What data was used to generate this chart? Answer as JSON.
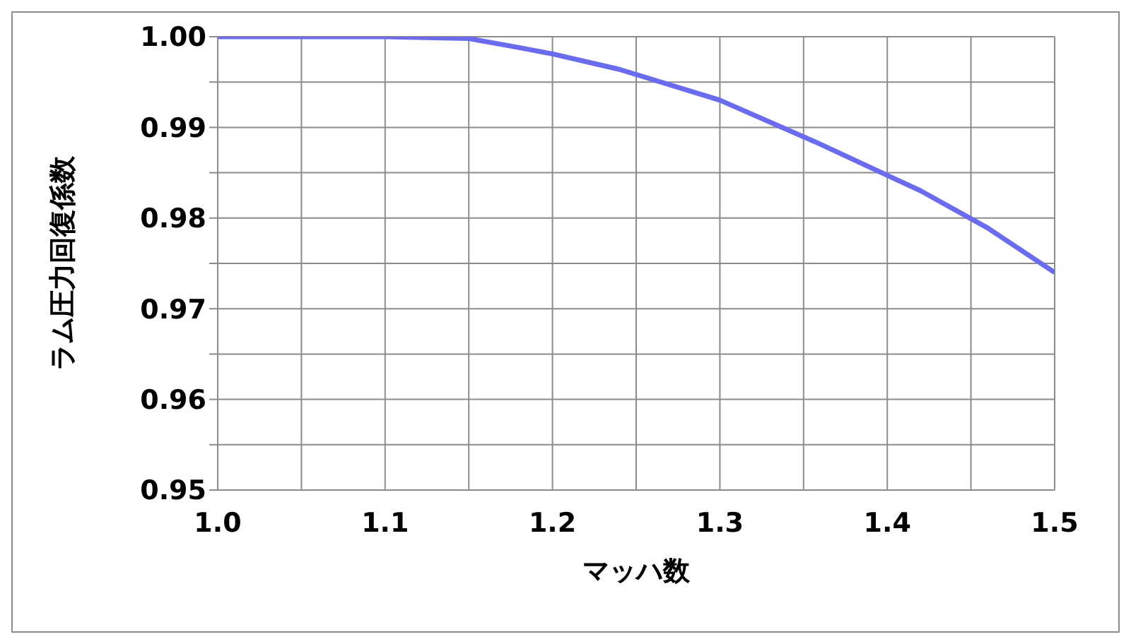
{
  "chart_data": {
    "type": "line",
    "xlabel": "マッハ数",
    "ylabel": "ラム圧力回復係数",
    "x": [
      1.0,
      1.1,
      1.15,
      1.18,
      1.2,
      1.24,
      1.3,
      1.357,
      1.42,
      1.46,
      1.5
    ],
    "series": [
      {
        "color": "#6b6bee",
        "values": [
          1.0,
          1.0,
          0.9998,
          0.9988,
          0.9981,
          0.9964,
          0.993,
          0.9884,
          0.983,
          0.9789,
          0.974
        ]
      }
    ],
    "xlim": [
      1.0,
      1.5
    ],
    "ylim": [
      0.95,
      1.0
    ],
    "xticks": [
      {
        "value": 1.0,
        "label": "1.0"
      },
      {
        "value": 1.05,
        "label": null
      },
      {
        "value": 1.1,
        "label": "1.1"
      },
      {
        "value": 1.15,
        "label": null
      },
      {
        "value": 1.2,
        "label": "1.2"
      },
      {
        "value": 1.25,
        "label": null
      },
      {
        "value": 1.3,
        "label": "1.3"
      },
      {
        "value": 1.35,
        "label": null
      },
      {
        "value": 1.4,
        "label": "1.4"
      },
      {
        "value": 1.45,
        "label": null
      },
      {
        "value": 1.5,
        "label": "1.5"
      }
    ],
    "yticks": [
      {
        "value": 0.95,
        "label": "0.95"
      },
      {
        "value": 0.955,
        "label": null
      },
      {
        "value": 0.96,
        "label": "0.96"
      },
      {
        "value": 0.965,
        "label": null
      },
      {
        "value": 0.97,
        "label": "0.97"
      },
      {
        "value": 0.975,
        "label": null
      },
      {
        "value": 0.98,
        "label": "0.98"
      },
      {
        "value": 0.985,
        "label": null
      },
      {
        "value": 0.99,
        "label": "0.99"
      },
      {
        "value": 0.995,
        "label": null
      },
      {
        "value": 1.0,
        "label": "1.00"
      }
    ],
    "grid": true,
    "legend": false,
    "marker": "none",
    "line_style": "solid"
  }
}
